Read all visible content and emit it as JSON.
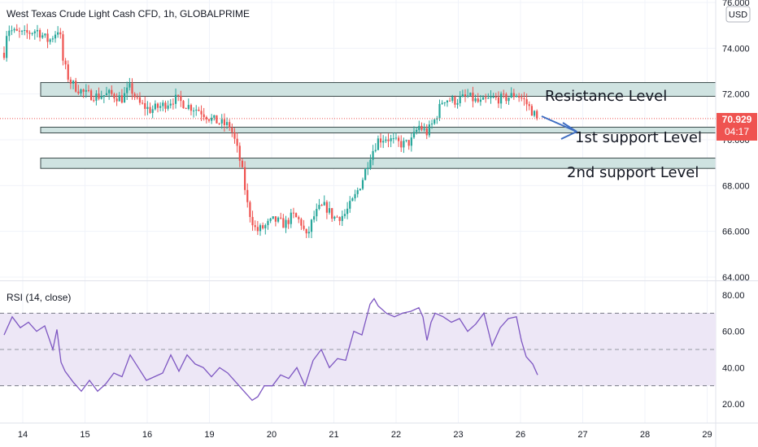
{
  "header": {
    "title": "West Texas Crude Light Cash CFD, 1h, GLOBALPRIME",
    "currency": "USD"
  },
  "price_axis": {
    "ticks": [
      "76.000",
      "74.000",
      "72.000",
      "70.000",
      "68.000",
      "66.000",
      "64.000"
    ]
  },
  "last_price": {
    "value": "70.929",
    "countdown": "04:17",
    "color": "#ef5350"
  },
  "rsi_panel": {
    "title": "RSI (14, close)",
    "ticks": [
      "80.00",
      "60.00",
      "40.00",
      "20.00"
    ]
  },
  "time_axis": {
    "ticks": [
      "14",
      "15",
      "16",
      "19",
      "20",
      "21",
      "22",
      "23",
      "26",
      "27",
      "28",
      "29"
    ]
  },
  "annotations": {
    "resistance": "Resistance Level",
    "support1": "1st support Level",
    "support2": "2nd support Level"
  },
  "colors": {
    "up": "#26a69a",
    "down": "#ef5350",
    "rsi_line": "#7e57c2",
    "rsi_band": "#ede7f6",
    "zone_fill": "#cfe3e1",
    "arrow": "#3f6ec2"
  },
  "chart_data": [
    {
      "type": "candlestick",
      "title": "West Texas Crude Light Cash CFD, 1h, GLOBALPRIME",
      "ylim": [
        64,
        76
      ],
      "x_ticks": [
        "14",
        "15",
        "16",
        "19",
        "20",
        "21",
        "22",
        "23",
        "26",
        "27",
        "28",
        "29"
      ],
      "zones": [
        {
          "name": "Resistance Level",
          "low": 71.9,
          "high": 72.5
        },
        {
          "name": "1st support Level",
          "low": 70.3,
          "high": 70.55
        },
        {
          "name": "2nd support Level",
          "low": 68.75,
          "high": 69.2
        }
      ],
      "last_price": 70.929,
      "close_path": [
        [
          0,
          73.8
        ],
        [
          4,
          74.9
        ],
        [
          12,
          74.7
        ],
        [
          25,
          74.6
        ],
        [
          40,
          74.8
        ],
        [
          55,
          74.3
        ],
        [
          68,
          74.9
        ],
        [
          72,
          73.5
        ],
        [
          80,
          72.6
        ],
        [
          88,
          72.3
        ],
        [
          100,
          72.0
        ],
        [
          115,
          71.9
        ],
        [
          130,
          72.0
        ],
        [
          145,
          71.8
        ],
        [
          155,
          72.3
        ],
        [
          165,
          71.6
        ],
        [
          180,
          71.3
        ],
        [
          195,
          71.5
        ],
        [
          210,
          71.8
        ],
        [
          225,
          71.5
        ],
        [
          240,
          71.3
        ],
        [
          255,
          70.9
        ],
        [
          268,
          70.7
        ],
        [
          278,
          70.6
        ],
        [
          285,
          69.8
        ],
        [
          292,
          68.8
        ],
        [
          300,
          67.0
        ],
        [
          310,
          66.0
        ],
        [
          320,
          66.2
        ],
        [
          332,
          66.5
        ],
        [
          345,
          66.3
        ],
        [
          355,
          66.7
        ],
        [
          365,
          66.4
        ],
        [
          372,
          65.7
        ],
        [
          380,
          66.6
        ],
        [
          388,
          67.0
        ],
        [
          395,
          67.1
        ],
        [
          405,
          66.6
        ],
        [
          418,
          66.7
        ],
        [
          430,
          67.4
        ],
        [
          440,
          68.2
        ],
        [
          450,
          69.3
        ],
        [
          460,
          70.0
        ],
        [
          470,
          70.1
        ],
        [
          480,
          69.9
        ],
        [
          490,
          69.8
        ],
        [
          500,
          69.9
        ],
        [
          510,
          70.6
        ],
        [
          520,
          70.3
        ],
        [
          530,
          70.9
        ],
        [
          540,
          71.8
        ],
        [
          555,
          71.7
        ],
        [
          570,
          71.9
        ],
        [
          585,
          71.6
        ],
        [
          600,
          71.8
        ],
        [
          615,
          71.8
        ],
        [
          630,
          72.0
        ],
        [
          640,
          71.7
        ],
        [
          650,
          71.2
        ],
        [
          656,
          70.93
        ]
      ]
    },
    {
      "type": "line",
      "title": "RSI (14, close)",
      "ylim": [
        14,
        82
      ],
      "band": [
        30,
        70
      ],
      "midline": 50,
      "y_ticks": [
        80,
        60,
        40,
        20
      ],
      "x": [
        0,
        10,
        20,
        30,
        40,
        50,
        60,
        65,
        70,
        75,
        85,
        95,
        105,
        115,
        125,
        135,
        145,
        155,
        165,
        175,
        185,
        195,
        205,
        215,
        225,
        235,
        245,
        255,
        265,
        275,
        285,
        295,
        305,
        312,
        320,
        330,
        340,
        350,
        360,
        370,
        380,
        390,
        400,
        410,
        420,
        430,
        440,
        450,
        455,
        460,
        470,
        480,
        490,
        500,
        510,
        515,
        520,
        525,
        530,
        540,
        550,
        560,
        570,
        580,
        590,
        600,
        610,
        620,
        630,
        636,
        642,
        650,
        656
      ],
      "y": [
        58,
        68,
        62,
        65,
        60,
        63,
        50,
        61,
        43,
        38,
        32,
        27,
        33,
        27,
        31,
        37,
        35,
        47,
        40,
        33,
        35,
        37,
        47,
        38,
        47,
        42,
        40,
        35,
        40,
        37,
        32,
        27,
        22,
        24,
        30,
        30,
        36,
        34,
        40,
        30,
        44,
        50,
        40,
        45,
        44,
        60,
        58,
        75,
        78,
        74,
        70,
        68,
        70,
        71,
        73,
        68,
        55,
        65,
        70,
        68,
        65,
        67,
        60,
        64,
        70,
        52,
        62,
        67,
        68,
        55,
        46,
        42,
        36
      ]
    }
  ]
}
